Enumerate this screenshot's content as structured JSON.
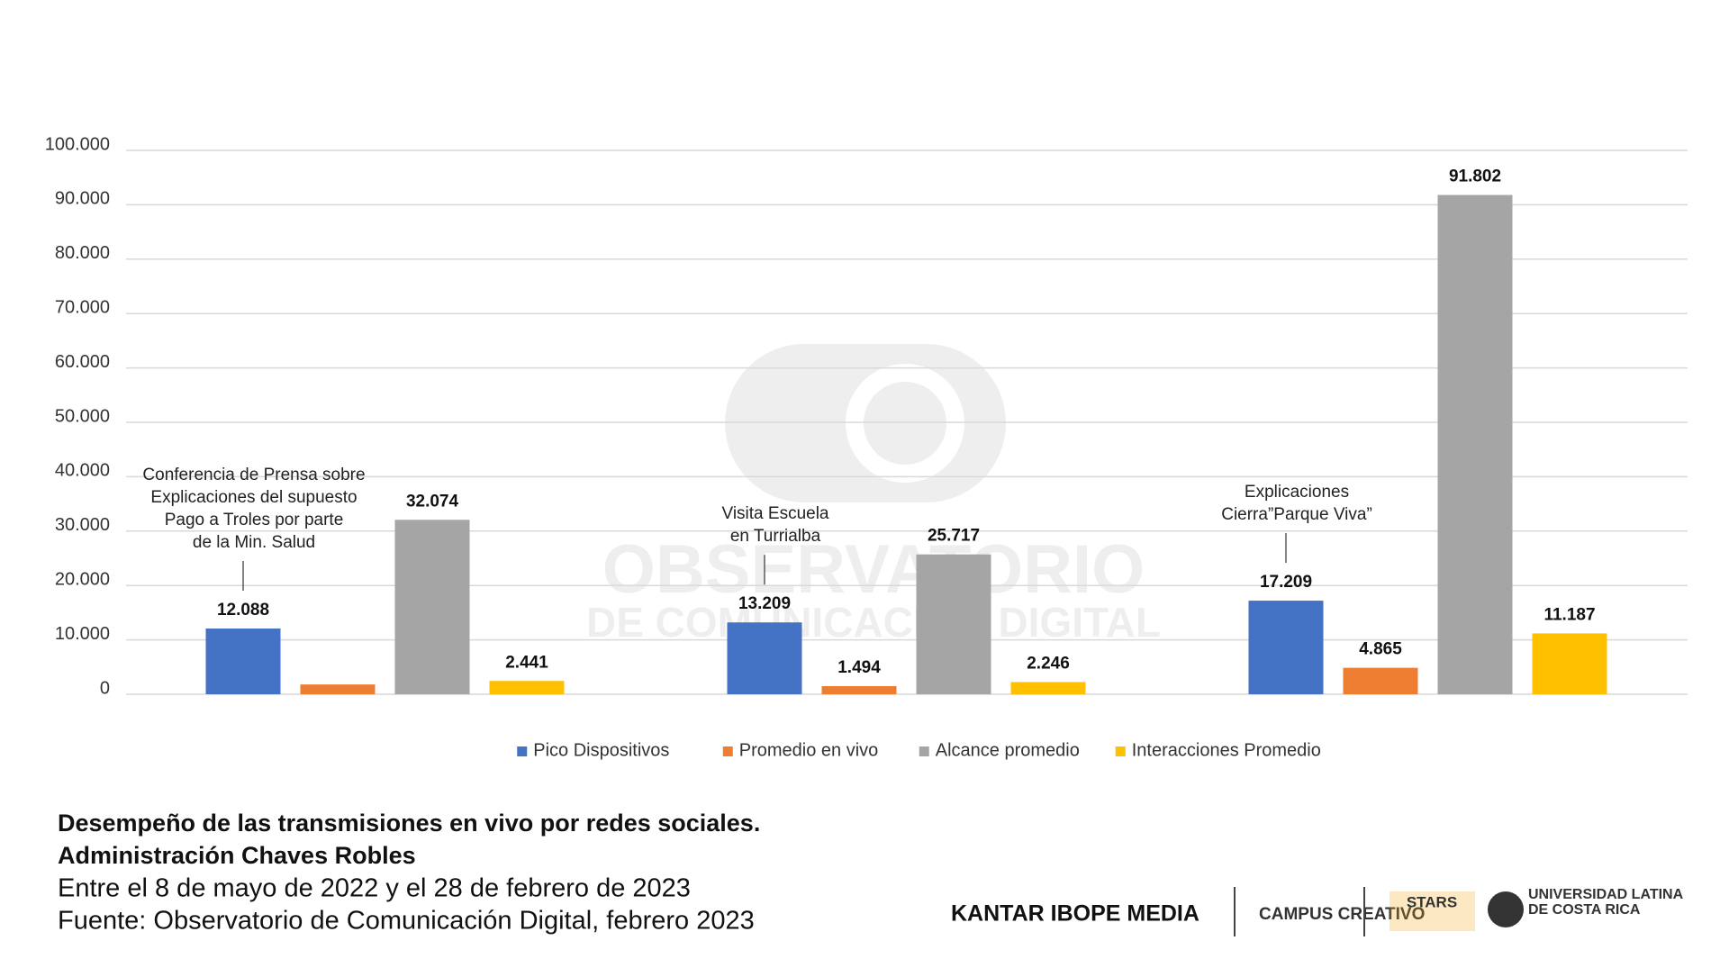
{
  "chart_data": {
    "type": "bar",
    "categories": [
      [
        "Conferencia de Prensa sobre",
        "Explicaciones del supuesto",
        "Pago a Troles por parte",
        "de la Min. Salud"
      ],
      [
        "Visita Escuela",
        "en Turrialba"
      ],
      [
        "Explicaciones",
        "Cierra”Parque Viva”"
      ]
    ],
    "series": [
      {
        "name": "Pico Dispositivos",
        "color": "#4472c4",
        "values": [
          12088,
          13209,
          17209
        ],
        "value_labels": [
          "12.088",
          "13.209",
          "17.209"
        ]
      },
      {
        "name": "Promedio en vivo",
        "color": "#ed7d31",
        "values": [
          1800,
          1494,
          4865
        ],
        "value_labels": [
          null,
          "1.494",
          "4.865"
        ]
      },
      {
        "name": "Alcance promedio",
        "color": "#a5a5a5",
        "values": [
          32074,
          25717,
          91802
        ],
        "value_labels": [
          "32.074",
          "25.717",
          "91.802"
        ]
      },
      {
        "name": "Interacciones Promedio",
        "color": "#ffc000",
        "values": [
          2441,
          2246,
          11187
        ],
        "value_labels": [
          "2.441",
          "2.246",
          "11.187"
        ]
      }
    ],
    "ylim": [
      0,
      100000
    ],
    "yticks": [
      0,
      {
        "value": 10000,
        "label": "10.000"
      },
      {
        "value": 20000,
        "label": "20.000"
      },
      {
        "value": 30000,
        "label": "30.000"
      },
      {
        "value": 40000,
        "label": "40.000"
      },
      {
        "value": 50000,
        "label": "50.000"
      },
      {
        "value": 60000,
        "label": "60.000"
      },
      {
        "value": 70000,
        "label": "70.000"
      },
      {
        "value": 80000,
        "label": "80.000"
      },
      {
        "value": 90000,
        "label": "90.000"
      },
      {
        "value": 100000,
        "label": "100.000"
      }
    ],
    "grid": true,
    "legend": "bottom"
  },
  "watermark": [
    "OBSERVATORIO",
    "DE COMUNICACIÓN DIGITAL"
  ],
  "footer": {
    "title": [
      "Desempeño de las transmisiones en vivo por redes sociales.",
      "Administración Chaves Robles"
    ],
    "subtitle": [
      "Entre el 8 de mayo de 2022 y el 28 de febrero de 2023",
      "Fuente: Observatorio de Comunicación Digital, febrero 2023"
    ],
    "logos": [
      "KANTAR IBOPE MEDIA",
      "CAMPUS CREATIVO",
      "STARS",
      "UNIVERSIDAD LATINA",
      "DE COSTA RICA"
    ]
  }
}
